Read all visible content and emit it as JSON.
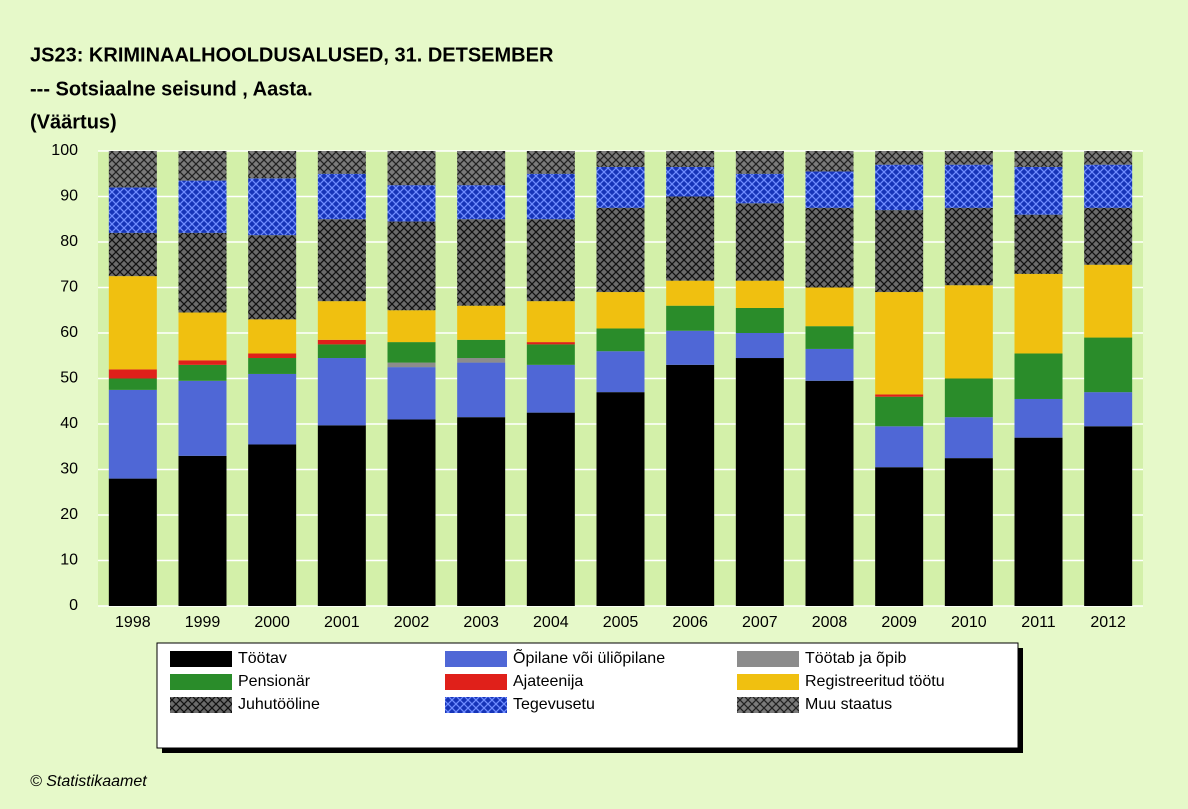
{
  "chart_data": {
    "type": "stacked_bar",
    "title": "JS23: KRIMINAALHOOLDUSALUSED, 31. DETSEMBER",
    "subtitle": "--- Sotsiaalne seisund , Aasta.",
    "unit_label": "(Väärtus)",
    "source": "© Statistikaamet",
    "categories": [
      "1998",
      "1999",
      "2000",
      "2001",
      "2002",
      "2003",
      "2004",
      "2005",
      "2006",
      "2007",
      "2008",
      "2009",
      "2010",
      "2011",
      "2012"
    ],
    "ylim": [
      0,
      100
    ],
    "yticks": [
      0,
      10,
      20,
      30,
      40,
      50,
      60,
      70,
      80,
      90,
      100
    ],
    "grid": true,
    "series": [
      {
        "name": "Töötav",
        "color": "#000000",
        "values": [
          28,
          33,
          35.5,
          39.7,
          41,
          41.5,
          42.5,
          47,
          53,
          54.5,
          49.5,
          30.5,
          32.5,
          37,
          39.5
        ]
      },
      {
        "name": "Õpilane või üliõpilane",
        "color": "#4f67d6",
        "values": [
          19.5,
          16.5,
          15.5,
          14.8,
          11.5,
          12,
          10.5,
          9,
          7.5,
          5.5,
          7,
          9,
          9,
          8.5,
          7.5
        ]
      },
      {
        "name": "Töötab ja õpib",
        "color": "#8c8c8c",
        "values": [
          0,
          0,
          0,
          0,
          1,
          1,
          0,
          0,
          0,
          0,
          0,
          0,
          0,
          0,
          0
        ]
      },
      {
        "name": "Pensionär",
        "color": "#2a8c2a",
        "values": [
          2.5,
          3.5,
          3.5,
          3,
          4.5,
          4,
          4.5,
          5,
          5.5,
          5.5,
          5,
          6.5,
          8.5,
          10,
          12
        ]
      },
      {
        "name": "Ajateenija",
        "color": "#e0201a",
        "values": [
          2,
          1,
          1,
          1,
          0,
          0,
          0.5,
          0,
          0,
          0,
          0,
          0.5,
          0,
          0,
          0
        ]
      },
      {
        "name": "Registreeritud töötu",
        "color": "#f0c010",
        "values": [
          20.5,
          10.5,
          7.5,
          8.5,
          7,
          7.5,
          9,
          8,
          5.5,
          6,
          8.5,
          22.5,
          20.5,
          17.5,
          16
        ]
      },
      {
        "name": "Juhutööline",
        "color": "#6a6a6a",
        "hatch": true,
        "hatch_color": "#111111",
        "values": [
          9.5,
          17.5,
          18.5,
          18,
          19.5,
          19,
          18,
          18.5,
          18.5,
          17,
          17.5,
          18,
          17,
          13,
          12.5
        ]
      },
      {
        "name": "Tegevusetu",
        "color": "#1634b8",
        "hatch": true,
        "hatch_color": "#6f8cff",
        "values": [
          10,
          11.5,
          12.5,
          10,
          8,
          7.5,
          10,
          9,
          6.5,
          6.5,
          8,
          10,
          9.5,
          10.5,
          9.5
        ]
      },
      {
        "name": "Muu staatus",
        "color": "#7a7a7a",
        "hatch": true,
        "hatch_color": "#222222",
        "values": [
          8,
          6.5,
          6,
          5,
          7.5,
          7.5,
          5,
          3.5,
          3.5,
          5,
          4.5,
          3,
          3,
          3.5,
          3
        ]
      }
    ]
  }
}
